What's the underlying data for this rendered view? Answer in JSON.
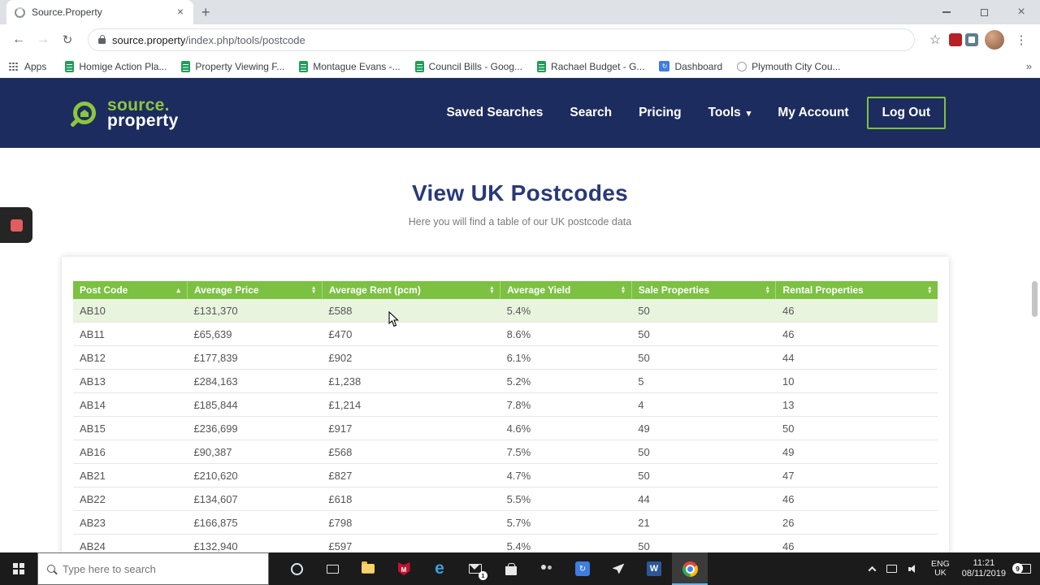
{
  "browser": {
    "tab_title": "Source.Property",
    "url_domain": "source.property",
    "url_path": "/index.php/tools/postcode",
    "bookmarks_label": "Apps",
    "bookmarks": [
      {
        "label": "Homige Action Pla...",
        "icon": "sheets-icon"
      },
      {
        "label": "Property Viewing F...",
        "icon": "sheets-icon"
      },
      {
        "label": "Montague Evans -...",
        "icon": "sheets-icon"
      },
      {
        "label": "Council Bills - Goog...",
        "icon": "sheets-icon"
      },
      {
        "label": "Rachael Budget - G...",
        "icon": "sheets-icon"
      },
      {
        "label": "Dashboard",
        "icon": "dashboard-icon"
      },
      {
        "label": "Plymouth City Cou...",
        "icon": "site-icon"
      }
    ]
  },
  "site": {
    "logo_top": "source.",
    "logo_bottom": "property",
    "nav": [
      {
        "label": "Saved Searches",
        "dropdown": false
      },
      {
        "label": "Search",
        "dropdown": false
      },
      {
        "label": "Pricing",
        "dropdown": false
      },
      {
        "label": "Tools",
        "dropdown": true
      },
      {
        "label": "My Account",
        "dropdown": false
      }
    ],
    "logout_label": "Log Out"
  },
  "page": {
    "title": "View UK Postcodes",
    "subtitle": "Here you will find a table of our UK postcode data"
  },
  "table": {
    "sorted_column_index": 0,
    "highlighted_row_index": 0,
    "columns": [
      "Post Code",
      "Average Price",
      "Average Rent (pcm)",
      "Average Yield",
      "Sale Properties",
      "Rental Properties"
    ],
    "rows": [
      [
        "AB10",
        "£131,370",
        "£588",
        "5.4%",
        "50",
        "46"
      ],
      [
        "AB11",
        "£65,639",
        "£470",
        "8.6%",
        "50",
        "46"
      ],
      [
        "AB12",
        "£177,839",
        "£902",
        "6.1%",
        "50",
        "44"
      ],
      [
        "AB13",
        "£284,163",
        "£1,238",
        "5.2%",
        "5",
        "10"
      ],
      [
        "AB14",
        "£185,844",
        "£1,214",
        "7.8%",
        "4",
        "13"
      ],
      [
        "AB15",
        "£236,699",
        "£917",
        "4.6%",
        "49",
        "50"
      ],
      [
        "AB16",
        "£90,387",
        "£568",
        "7.5%",
        "50",
        "49"
      ],
      [
        "AB21",
        "£210,620",
        "£827",
        "4.7%",
        "50",
        "47"
      ],
      [
        "AB22",
        "£134,607",
        "£618",
        "5.5%",
        "44",
        "46"
      ],
      [
        "AB23",
        "£166,875",
        "£798",
        "5.7%",
        "21",
        "26"
      ],
      [
        "AB24",
        "£132,940",
        "£597",
        "5.4%",
        "50",
        "46"
      ]
    ]
  },
  "taskbar": {
    "search_placeholder": "Type here to search",
    "apps": [
      {
        "icon": "cortana-icon"
      },
      {
        "icon": "task-view-icon"
      },
      {
        "icon": "file-explorer-icon"
      },
      {
        "icon": "mcafee-icon"
      },
      {
        "icon": "edge-icon"
      },
      {
        "icon": "mail-icon",
        "badge": "1"
      },
      {
        "icon": "store-icon"
      },
      {
        "icon": "people-icon"
      },
      {
        "icon": "dashboard-icon"
      },
      {
        "icon": "paperplane-icon"
      },
      {
        "icon": "word-icon"
      },
      {
        "icon": "chrome-icon",
        "active": true
      }
    ],
    "tray": {
      "lang_line1": "ENG",
      "lang_line2": "UK",
      "time": "11:21",
      "date": "08/11/2019",
      "notification_count": "9"
    }
  },
  "colors": {
    "header_navy": "#1d2c5e",
    "brand_green": "#7dc142",
    "title_blue": "#28397b",
    "highlight_row_green": "#e9f4de"
  }
}
